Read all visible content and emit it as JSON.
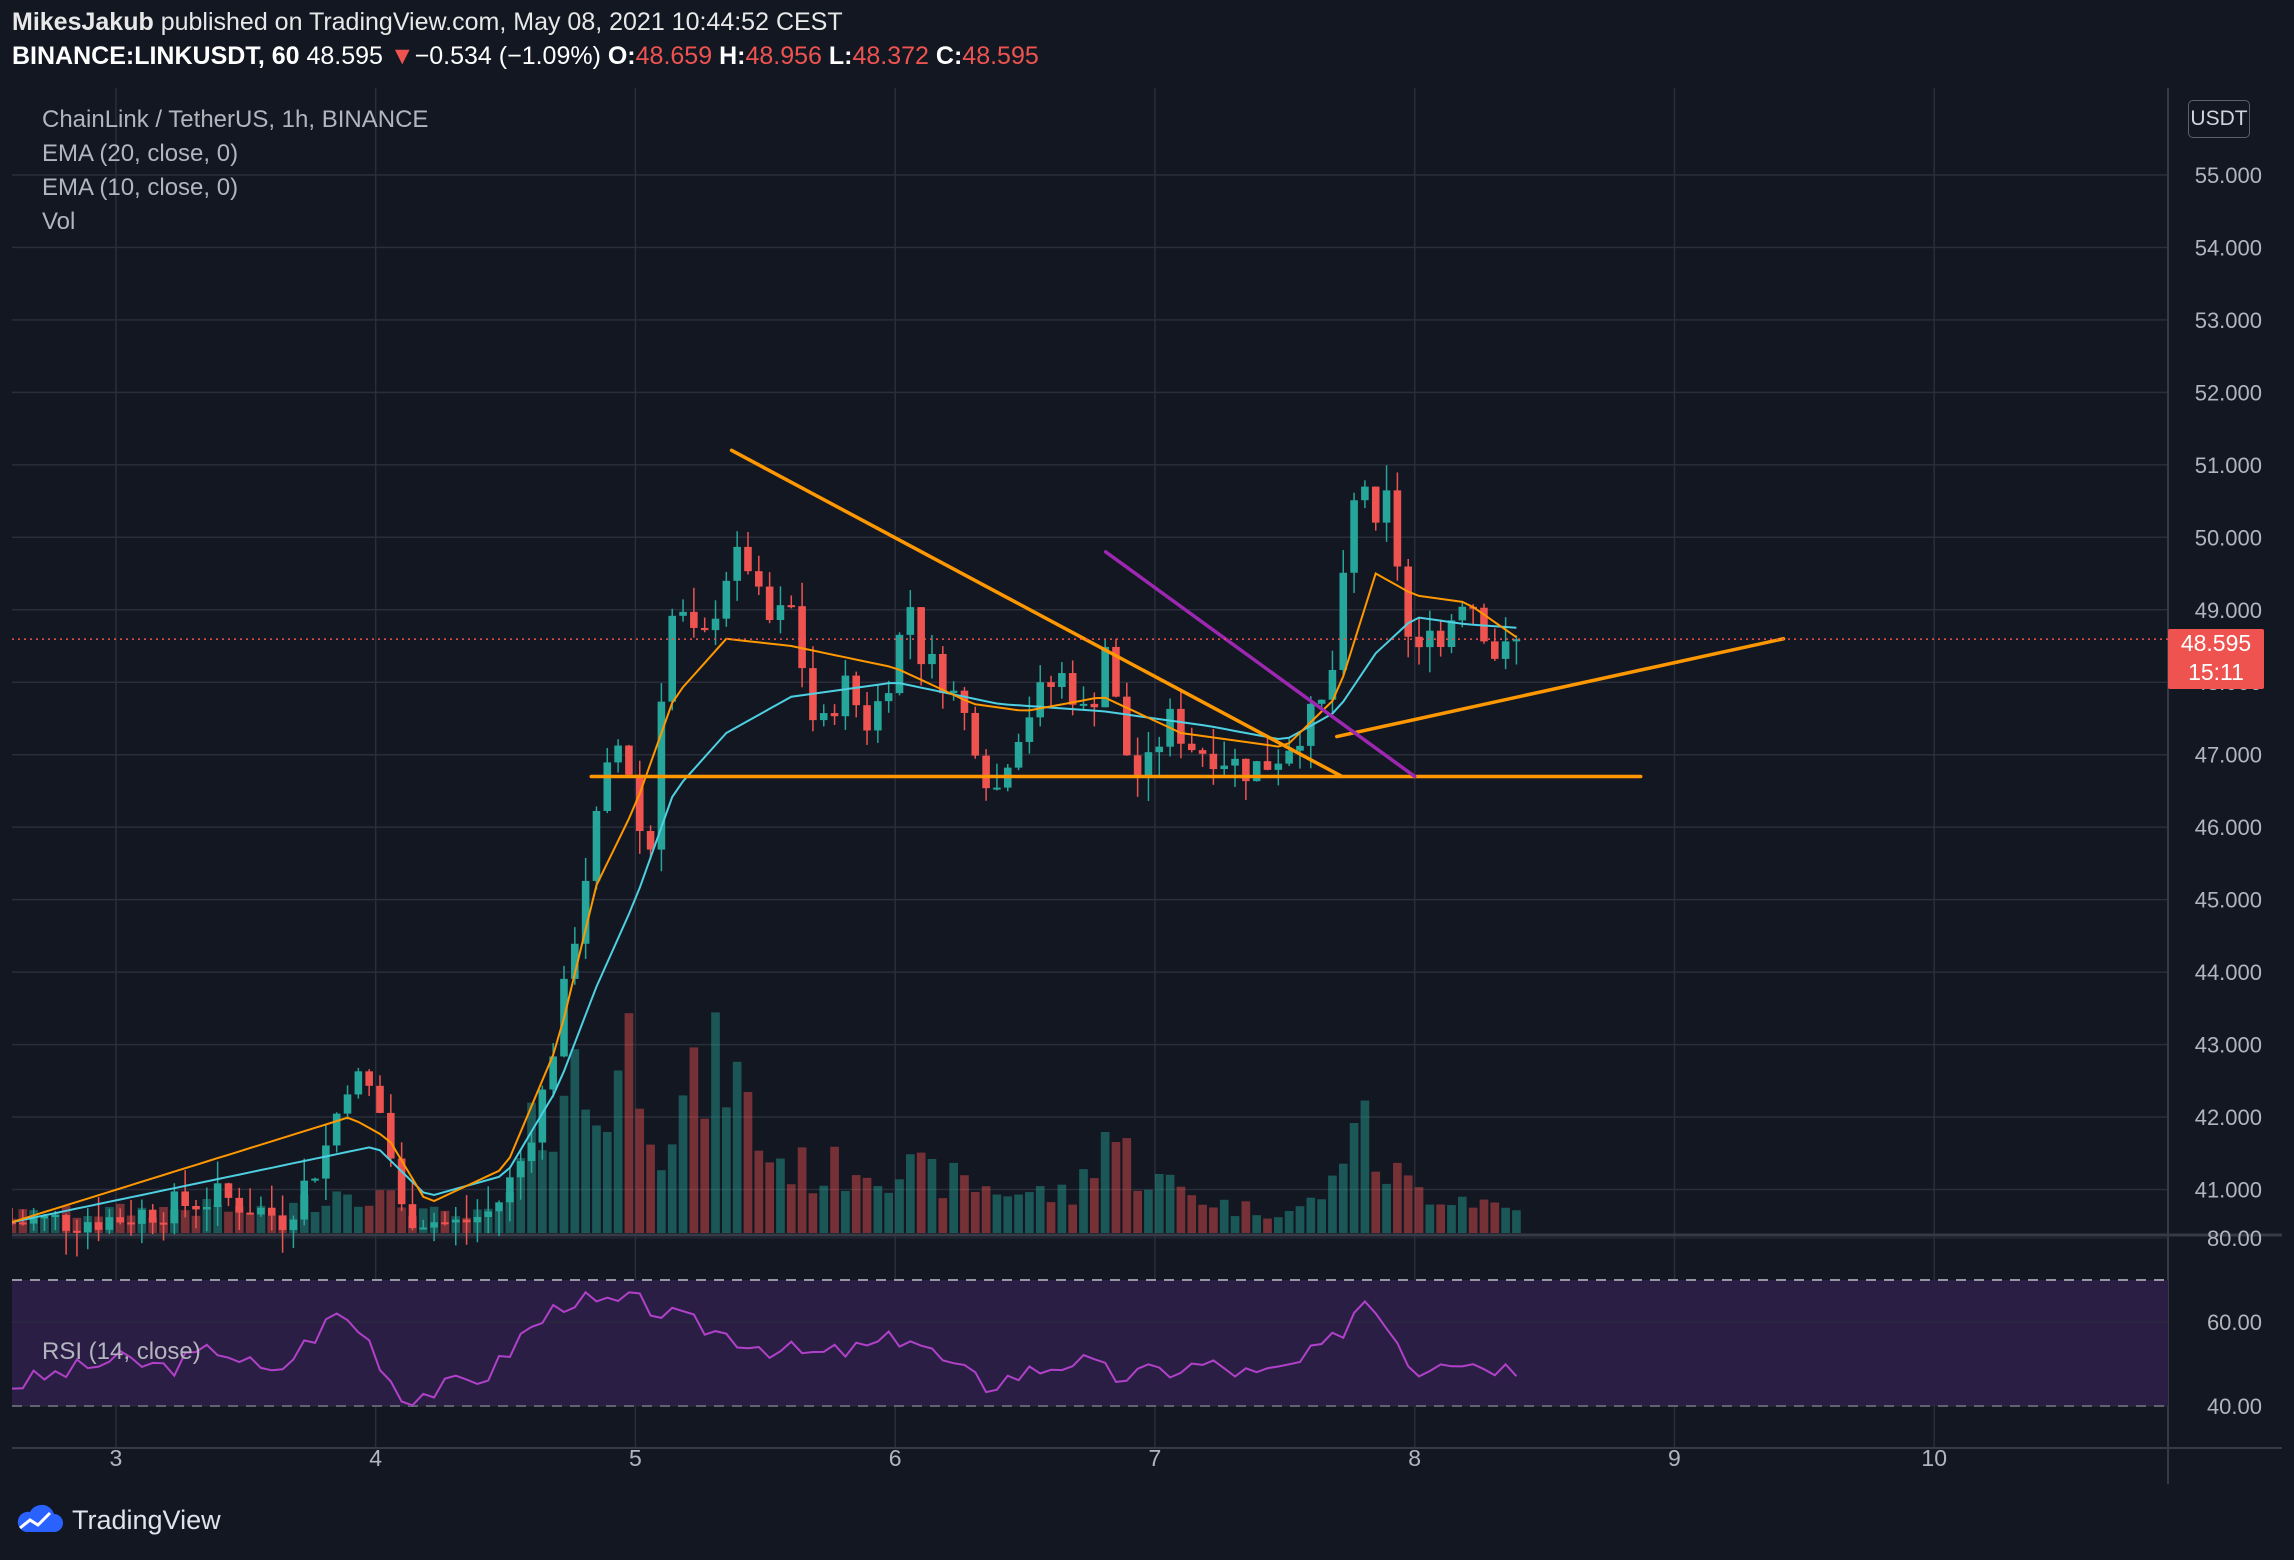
{
  "header": {
    "author": "MikesJakub",
    "published_text": "published on TradingView.com, May 08, 2021 10:44:52 CEST",
    "symbol": "BINANCE:LINKUSDT, 60",
    "last": "48.595",
    "change_arrow": "▼",
    "change": "−0.534 (−1.09%)",
    "o_label": "O:",
    "o_val": "48.659",
    "h_label": "H:",
    "h_val": "48.956",
    "l_label": "L:",
    "l_val": "48.372",
    "c_label": "C:",
    "c_val": "48.595"
  },
  "legend": {
    "title": "ChainLink / TetherUS, 1h, BINANCE",
    "ema20": "EMA (20, close, 0)",
    "ema10": "EMA (10, close, 0)",
    "vol": "Vol",
    "rsi": "RSI (14, close)"
  },
  "currency": "USDT",
  "price_tag": {
    "price": "48.595",
    "countdown": "15:11"
  },
  "footer": {
    "brand": "TradingView"
  },
  "colors": {
    "background": "#131722",
    "grid": "#2a2e39",
    "up": "#26a69a",
    "down": "#ef5350",
    "ema20": "#4dd0e1",
    "ema10": "#ff9800",
    "trendline": "#ff9800",
    "purple_line": "#9c27b0",
    "rsi_line": "#b041c8",
    "rsi_band": "#2b1e45"
  },
  "chart_data": {
    "type": "candlestick",
    "symbol": "LINKUSDT",
    "interval": "1h",
    "x_ticks": [
      "3",
      "4",
      "5",
      "6",
      "7",
      "8",
      "9",
      "10"
    ],
    "x_range_days": [
      2.6,
      10.9
    ],
    "y_ticks": [
      "41.000",
      "42.000",
      "43.000",
      "44.000",
      "45.000",
      "46.000",
      "47.000",
      "48.000",
      "49.000",
      "50.000",
      "51.000",
      "52.000",
      "53.000",
      "54.000",
      "55.000"
    ],
    "ylim": [
      40.4,
      56.2
    ],
    "last_price": 48.595,
    "close_anchors": [
      [
        2.6,
        40.55
      ],
      [
        3.0,
        40.6
      ],
      [
        3.4,
        40.9
      ],
      [
        3.65,
        40.6
      ],
      [
        3.8,
        41.5
      ],
      [
        3.9,
        42.6
      ],
      [
        4.0,
        42.3
      ],
      [
        4.05,
        41.6
      ],
      [
        4.1,
        40.7
      ],
      [
        4.3,
        40.5
      ],
      [
        4.45,
        40.7
      ],
      [
        4.55,
        41.3
      ],
      [
        4.65,
        42.4
      ],
      [
        4.72,
        43.6
      ],
      [
        4.8,
        45.2
      ],
      [
        4.88,
        46.6
      ],
      [
        4.95,
        47.3
      ],
      [
        5.05,
        45.3
      ],
      [
        5.1,
        47.9
      ],
      [
        5.15,
        49.1
      ],
      [
        5.25,
        48.4
      ],
      [
        5.35,
        49.5
      ],
      [
        5.42,
        49.8
      ],
      [
        5.5,
        48.8
      ],
      [
        5.6,
        49.0
      ],
      [
        5.7,
        47.2
      ],
      [
        5.8,
        48.0
      ],
      [
        5.9,
        47.4
      ],
      [
        6.0,
        48.3
      ],
      [
        6.05,
        49.2
      ],
      [
        6.1,
        48.4
      ],
      [
        6.2,
        48.0
      ],
      [
        6.3,
        47.3
      ],
      [
        6.38,
        46.4
      ],
      [
        6.45,
        47.2
      ],
      [
        6.55,
        47.8
      ],
      [
        6.65,
        48.1
      ],
      [
        6.75,
        47.4
      ],
      [
        6.8,
        48.7
      ],
      [
        6.88,
        47.1
      ],
      [
        6.95,
        46.6
      ],
      [
        7.05,
        47.5
      ],
      [
        7.15,
        47.1
      ],
      [
        7.25,
        47.0
      ],
      [
        7.35,
        46.8
      ],
      [
        7.45,
        46.9
      ],
      [
        7.55,
        47.3
      ],
      [
        7.65,
        47.7
      ],
      [
        7.7,
        48.4
      ],
      [
        7.75,
        50.2
      ],
      [
        7.8,
        50.9
      ],
      [
        7.85,
        50.0
      ],
      [
        7.9,
        50.6
      ],
      [
        7.95,
        49.2
      ],
      [
        8.0,
        48.0
      ],
      [
        8.05,
        49.0
      ],
      [
        8.1,
        48.5
      ],
      [
        8.15,
        49.0
      ],
      [
        8.2,
        49.3
      ],
      [
        8.25,
        48.9
      ],
      [
        8.32,
        48.3
      ],
      [
        8.4,
        48.595
      ]
    ],
    "volume_anchors": [
      [
        2.6,
        0.5
      ],
      [
        3.4,
        0.7
      ],
      [
        3.6,
        0.5
      ],
      [
        3.9,
        1.3
      ],
      [
        4.05,
        0.9
      ],
      [
        4.3,
        0.4
      ],
      [
        4.5,
        0.6
      ],
      [
        4.6,
        2.6
      ],
      [
        4.75,
        4.5
      ],
      [
        4.85,
        3.2
      ],
      [
        5.0,
        5.5
      ],
      [
        5.1,
        2.8
      ],
      [
        5.35,
        4.8
      ],
      [
        5.5,
        2.2
      ],
      [
        5.7,
        1.6
      ],
      [
        5.9,
        2.0
      ],
      [
        6.1,
        1.6
      ],
      [
        6.4,
        1.2
      ],
      [
        6.7,
        1.0
      ],
      [
        6.8,
        3.0
      ],
      [
        6.95,
        1.6
      ],
      [
        7.1,
        1.2
      ],
      [
        7.3,
        0.7
      ],
      [
        7.55,
        0.6
      ],
      [
        7.7,
        1.4
      ],
      [
        7.75,
        3.8
      ],
      [
        7.85,
        2.0
      ],
      [
        8.0,
        1.2
      ],
      [
        8.2,
        1.0
      ],
      [
        8.4,
        0.6
      ]
    ],
    "ema20_anchors": [
      [
        2.6,
        40.55
      ],
      [
        4.0,
        41.6
      ],
      [
        4.2,
        40.9
      ],
      [
        4.5,
        41.2
      ],
      [
        4.7,
        42.4
      ],
      [
        4.85,
        43.8
      ],
      [
        5.0,
        45.0
      ],
      [
        5.15,
        46.5
      ],
      [
        5.35,
        47.3
      ],
      [
        5.6,
        47.8
      ],
      [
        6.0,
        48.0
      ],
      [
        6.4,
        47.7
      ],
      [
        6.8,
        47.6
      ],
      [
        7.2,
        47.4
      ],
      [
        7.5,
        47.2
      ],
      [
        7.7,
        47.6
      ],
      [
        7.85,
        48.4
      ],
      [
        8.0,
        48.9
      ],
      [
        8.2,
        48.8
      ],
      [
        8.4,
        48.75
      ]
    ],
    "ema10_anchors": [
      [
        2.6,
        40.55
      ],
      [
        3.9,
        42.0
      ],
      [
        4.05,
        41.7
      ],
      [
        4.2,
        40.8
      ],
      [
        4.5,
        41.3
      ],
      [
        4.7,
        43.0
      ],
      [
        4.85,
        45.2
      ],
      [
        5.0,
        46.3
      ],
      [
        5.15,
        47.8
      ],
      [
        5.35,
        48.6
      ],
      [
        5.6,
        48.5
      ],
      [
        6.0,
        48.2
      ],
      [
        6.3,
        47.7
      ],
      [
        6.5,
        47.6
      ],
      [
        6.8,
        47.8
      ],
      [
        7.1,
        47.3
      ],
      [
        7.5,
        47.1
      ],
      [
        7.7,
        47.8
      ],
      [
        7.85,
        49.5
      ],
      [
        8.0,
        49.2
      ],
      [
        8.2,
        49.1
      ],
      [
        8.4,
        48.6
      ]
    ],
    "drawings": [
      {
        "kind": "line",
        "color": "#ff9800",
        "from": [
          5.37,
          51.2
        ],
        "to": [
          7.72,
          46.7
        ]
      },
      {
        "kind": "line",
        "color": "#ff9800",
        "from": [
          4.83,
          46.7
        ],
        "to": [
          8.87,
          46.7
        ]
      },
      {
        "kind": "line",
        "color": "#ff9800",
        "from": [
          7.7,
          47.25
        ],
        "to": [
          9.42,
          48.6
        ]
      },
      {
        "kind": "line",
        "color": "#9c27b0",
        "from": [
          6.81,
          49.8
        ],
        "to": [
          8.0,
          46.7
        ]
      }
    ],
    "rsi": {
      "y_ticks": [
        "40.00",
        "60.00",
        "80.00"
      ],
      "ylim": [
        30,
        80
      ],
      "band": [
        40,
        70
      ],
      "anchors": [
        [
          2.6,
          45
        ],
        [
          2.8,
          48
        ],
        [
          3.0,
          51
        ],
        [
          3.2,
          49
        ],
        [
          3.4,
          54
        ],
        [
          3.6,
          47
        ],
        [
          3.85,
          62
        ],
        [
          3.95,
          58
        ],
        [
          4.1,
          42
        ],
        [
          4.25,
          44
        ],
        [
          4.45,
          48
        ],
        [
          4.55,
          56
        ],
        [
          4.75,
          66
        ],
        [
          4.85,
          64
        ],
        [
          5.0,
          65
        ],
        [
          5.15,
          61
        ],
        [
          5.3,
          58
        ],
        [
          5.5,
          54
        ],
        [
          5.7,
          52
        ],
        [
          5.9,
          54
        ],
        [
          6.05,
          57
        ],
        [
          6.2,
          50
        ],
        [
          6.35,
          45
        ],
        [
          6.5,
          48
        ],
        [
          6.7,
          51
        ],
        [
          6.85,
          47
        ],
        [
          7.0,
          48
        ],
        [
          7.2,
          50
        ],
        [
          7.4,
          47
        ],
        [
          7.55,
          50
        ],
        [
          7.7,
          56
        ],
        [
          7.8,
          66
        ],
        [
          7.9,
          60
        ],
        [
          8.0,
          48
        ],
        [
          8.1,
          52
        ],
        [
          8.25,
          50
        ],
        [
          8.4,
          49
        ]
      ]
    }
  }
}
